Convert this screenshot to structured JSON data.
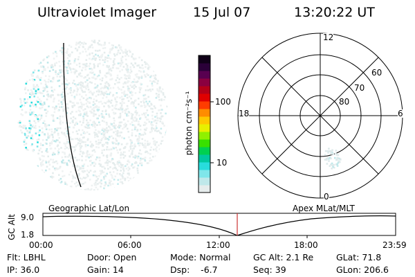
{
  "header": {
    "title": "Ultraviolet Imager",
    "date": "15 Jul 07",
    "time": "13:20:22 UT"
  },
  "colorbar": {
    "unit_label": "photon cm⁻²s⁻¹",
    "ticks": [
      "100",
      "10"
    ],
    "colors": [
      "#e6ecec",
      "#bfe8ea",
      "#7fe6ea",
      "#28dcdc",
      "#00c8a0",
      "#00d050",
      "#38e000",
      "#90f000",
      "#e8f000",
      "#ffc800",
      "#ff8c00",
      "#ff3c00",
      "#e00000",
      "#b40018",
      "#8a0040",
      "#580050",
      "#2a0038",
      "#100018"
    ]
  },
  "polar_plot": {
    "hour_labels": [
      "12",
      "18",
      "6",
      "0"
    ],
    "lat_labels": [
      "60",
      "70",
      "80"
    ]
  },
  "timeline": {
    "axis_label": "GC Alt",
    "left_title": "Geographic Lat/Lon",
    "right_title": "Apex MLat/MLT",
    "y_ticks": [
      "9.0",
      "1.8"
    ],
    "x_ticks": [
      "00:00",
      "06:00",
      "12:00",
      "18:00",
      "23:59"
    ],
    "marker_color": "#cc3333"
  },
  "info": {
    "row1": [
      "Flt: LBHL",
      "Door: Open",
      "Mode: Normal",
      "GC Alt: 2.1 Re",
      "GLat:  71.8"
    ],
    "row2": [
      "IP: 36.0",
      "Gain: 14",
      "Dsp:    -6.7",
      "Seq: 39",
      "GLon: 206.6"
    ]
  }
}
